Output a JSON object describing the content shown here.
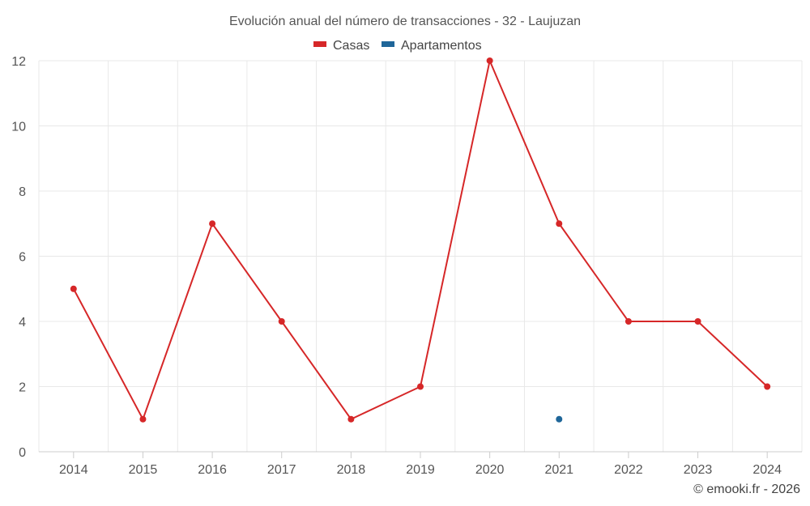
{
  "chart_data": {
    "type": "line",
    "title": "Evolución anual del número de transacciones - 32 - Laujuzan",
    "categories": [
      "2014",
      "2015",
      "2016",
      "2017",
      "2018",
      "2019",
      "2020",
      "2021",
      "2022",
      "2023",
      "2024"
    ],
    "ylim": [
      0,
      12
    ],
    "yticks": [
      "0",
      "2",
      "4",
      "6",
      "8",
      "10",
      "12"
    ],
    "grid": true,
    "legend_position": "top-center",
    "series": [
      {
        "name": "Casas",
        "color": "#d62728",
        "values": [
          5,
          1,
          7,
          4,
          1,
          2,
          12,
          7,
          4,
          4,
          2
        ]
      },
      {
        "name": "Apartamentos",
        "color": "#1f6699",
        "values": [
          null,
          null,
          null,
          null,
          null,
          null,
          null,
          1,
          null,
          null,
          null
        ]
      }
    ],
    "credit": "© emooki.fr - 2026"
  }
}
